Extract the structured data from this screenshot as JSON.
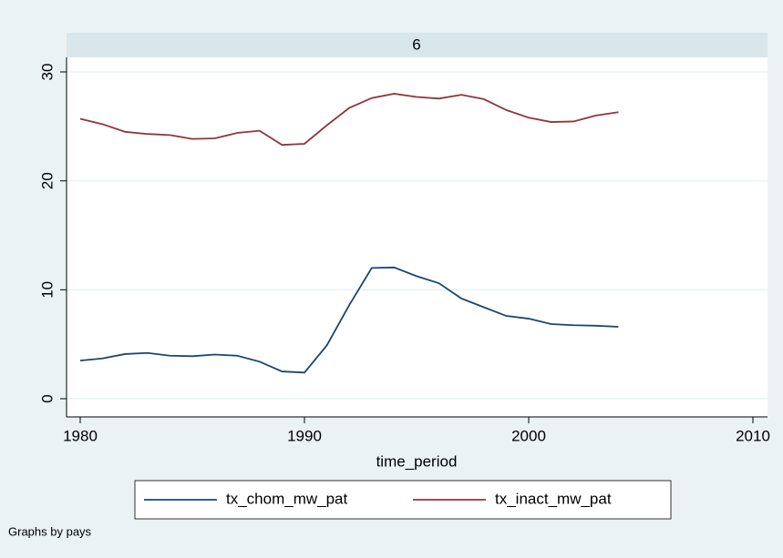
{
  "chart_data": {
    "type": "line",
    "panel_title": "6",
    "x_label": "time_period",
    "note": "Graphs by pays",
    "x": [
      1980,
      1981,
      1982,
      1983,
      1984,
      1985,
      1986,
      1987,
      1988,
      1989,
      1990,
      1991,
      1992,
      1993,
      1994,
      1995,
      1996,
      1997,
      1998,
      1999,
      2000,
      2001,
      2002,
      2003,
      2004
    ],
    "series": [
      {
        "name": "tx_chom_mw_pat",
        "color": "#1a476f",
        "values": [
          3.5,
          3.7,
          4.1,
          4.2,
          3.95,
          3.9,
          4.05,
          3.95,
          3.4,
          2.5,
          2.4,
          4.9,
          8.6,
          12.0,
          12.05,
          11.25,
          10.6,
          9.2,
          8.4,
          7.6,
          7.35,
          6.85,
          6.75,
          6.7,
          6.6
        ]
      },
      {
        "name": "tx_inact_mw_pat",
        "color": "#90353b",
        "values": [
          25.7,
          25.2,
          24.5,
          24.3,
          24.2,
          23.85,
          23.9,
          24.4,
          24.6,
          23.3,
          23.4,
          25.1,
          26.7,
          27.6,
          28.0,
          27.7,
          27.55,
          27.9,
          27.5,
          26.5,
          25.8,
          25.4,
          25.45,
          26.0,
          26.3
        ]
      }
    ],
    "xlim": [
      1980,
      2010
    ],
    "xticks": [
      1980,
      1990,
      2000,
      2010
    ],
    "ylim": [
      0,
      30
    ],
    "yticks": [
      0,
      10,
      20,
      30
    ],
    "grid": true,
    "legend": "bottom"
  }
}
